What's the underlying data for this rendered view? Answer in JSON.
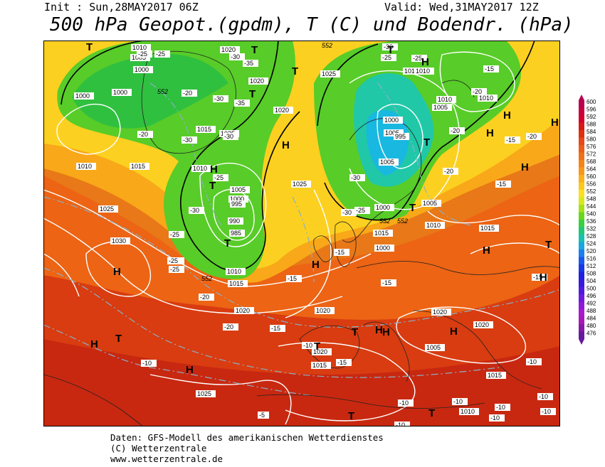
{
  "header": {
    "init": "Init : Sun,28MAY2017 06Z",
    "valid": "Valid: Wed,31MAY2017 12Z",
    "title": "500 hPa Geopot.(gpdm), T (C) und Bodendr. (hPa)"
  },
  "footer": {
    "line1": "Daten: GFS-Modell des amerikanischen Wetterdienstes",
    "line2": "(C) Wetterzentrale",
    "line3": "www.wetterzentrale.de"
  },
  "legend": {
    "levels": [
      "600",
      "596",
      "592",
      "588",
      "584",
      "580",
      "576",
      "572",
      "568",
      "564",
      "560",
      "556",
      "552",
      "548",
      "544",
      "540",
      "536",
      "532",
      "528",
      "524",
      "520",
      "516",
      "512",
      "508",
      "504",
      "500",
      "496",
      "492",
      "488",
      "484",
      "480",
      "476"
    ],
    "colors": [
      "#b8004e",
      "#c8003c",
      "#d4002a",
      "#d81818",
      "#e03010",
      "#e84818",
      "#ec5c18",
      "#f07018",
      "#f48418",
      "#f89818",
      "#fcb01c",
      "#fcc81c",
      "#fce020",
      "#d8e81c",
      "#a8e018",
      "#68d818",
      "#38d040",
      "#20c878",
      "#18c0b0",
      "#18a8e0",
      "#1880f0",
      "#1858f0",
      "#1838e8",
      "#2020e0",
      "#3818e0",
      "#5018e0",
      "#7018e0",
      "#9018d8",
      "#a818d0",
      "#a818b8",
      "#8818a8",
      "#6818a0"
    ]
  },
  "map": {
    "pressure_labels": [
      "1010",
      "1005",
      "1000",
      "1000",
      "1000",
      "1020",
      "1020",
      "1025",
      "1015",
      "1020",
      "1010",
      "1025",
      "1005",
      "1000",
      "995",
      "990",
      "985",
      "1010",
      "1015",
      "1030",
      "1025",
      "1015",
      "1010",
      "1020",
      "1025",
      "1020",
      "1015",
      "1000",
      "1005",
      "1005",
      "1010",
      "1010",
      "1000",
      "995",
      "1000",
      "1005",
      "1015",
      "1010",
      "1015",
      "1020",
      "1020",
      "1020",
      "1015",
      "1010",
      "1005",
      "1010",
      "1005",
      "1010",
      "1025"
    ],
    "temp_labels": [
      "-25",
      "-35",
      "-30",
      "-20",
      "-25",
      "-30",
      "-30",
      "-25",
      "-30",
      "-20",
      "-25",
      "-25",
      "-25",
      "-20",
      "-20",
      "-15",
      "-15",
      "-15",
      "-15",
      "-10",
      "-15",
      "-10",
      "-10",
      "-10",
      "-10",
      "-10",
      "-5",
      "-15",
      "-20",
      "-25",
      "-30",
      "-25",
      "-35",
      "-30",
      "-25",
      "-20",
      "-15",
      "-15",
      "-20",
      "-30",
      "-25",
      "-30",
      "-20",
      "-15",
      "-10",
      "-10",
      "-10",
      "-10"
    ],
    "geopot_labels": [
      "552",
      "552",
      "552",
      "552",
      "552"
    ],
    "highs": [
      "H",
      "H",
      "H",
      "H",
      "H",
      "H",
      "H",
      "H",
      "H",
      "H",
      "H",
      "H",
      "H",
      "H",
      "H",
      "H"
    ],
    "lows": [
      "T",
      "T",
      "T",
      "T",
      "T",
      "T",
      "T",
      "T",
      "T",
      "T",
      "T",
      "T",
      "T",
      "T",
      "T"
    ]
  }
}
